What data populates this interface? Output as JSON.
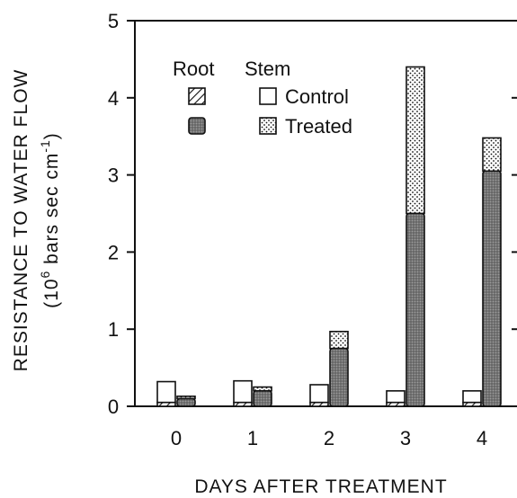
{
  "chart_data": {
    "type": "bar",
    "stacked": true,
    "categories": [
      "0",
      "1",
      "2",
      "3",
      "4"
    ],
    "xlabel": "DAYS AFTER TREATMENT",
    "ylabel_line1": "RESISTANCE TO WATER FLOW",
    "ylabel_line2_parts": [
      "(10",
      "6",
      " bars sec cm",
      "-1",
      ")"
    ],
    "ylim": [
      0,
      5
    ],
    "yticks": [
      "0",
      "1",
      "2",
      "3",
      "4",
      "5"
    ],
    "grid": false,
    "legend": {
      "position": "top-left",
      "header_root": "Root",
      "header_stem": "Stem",
      "label_control": "Control",
      "label_treated": "Treated"
    },
    "control": {
      "root": [
        0.05,
        0.05,
        0.05,
        0.05,
        0.05
      ],
      "stem": [
        0.27,
        0.28,
        0.23,
        0.15,
        0.15
      ]
    },
    "treated": {
      "root": [
        0.1,
        0.2,
        0.75,
        2.5,
        3.05
      ],
      "stem": [
        0.03,
        0.05,
        0.22,
        1.9,
        0.43
      ]
    },
    "colors": {
      "ink": "#111111",
      "treated_root_fill": "#7a7a7a",
      "background": "#ffffff"
    }
  }
}
